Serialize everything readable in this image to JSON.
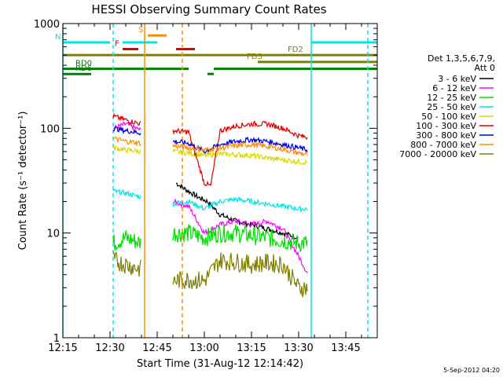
{
  "chart_data": {
    "type": "line",
    "title": "HESSI Observing Summary Count Rates",
    "xlabel": "Start Time (31-Aug-12 12:14:42)",
    "ylabel": "Count Rate (s⁻¹ detector⁻¹)",
    "y_scale": "log",
    "ylim": [
      1,
      1000
    ],
    "xlim": [
      "12:15",
      "13:55"
    ],
    "x_ticks": [
      "12:15",
      "12:30",
      "12:45",
      "13:00",
      "13:15",
      "13:30",
      "13:45"
    ],
    "y_ticks": [
      "1",
      "10",
      "100",
      "1000"
    ],
    "legend": {
      "placement": "right",
      "header": [
        "Det 1,3,5,6,7,9,",
        "Att 0"
      ],
      "entries": [
        {
          "label": "3 - 6 keV",
          "color": "#000000"
        },
        {
          "label": "6 - 12 keV",
          "color": "#ff00ff"
        },
        {
          "label": "12 - 25 keV",
          "color": "#00e000"
        },
        {
          "label": "25 - 50 keV",
          "color": "#00e5e5"
        },
        {
          "label": "50 - 100 keV",
          "color": "#d8d800"
        },
        {
          "label": "100 - 300 keV",
          "color": "#e00000"
        },
        {
          "label": "300 - 800 keV",
          "color": "#0000e0"
        },
        {
          "label": "800 - 7000 keV",
          "color": "#ff8c00"
        },
        {
          "label": "7000 - 20000 keV",
          "color": "#808000"
        }
      ]
    },
    "segments": [
      {
        "start": "12:28",
        "end": "12:41"
      },
      {
        "start": "12:50",
        "end": "13:34"
      }
    ],
    "series": [
      {
        "name": "3 - 6 keV",
        "color": "#000000",
        "points": [
          [
            "12:51",
            30
          ],
          [
            "12:55",
            25
          ],
          [
            "12:58",
            22
          ],
          [
            "13:01",
            20
          ],
          [
            "13:05",
            15
          ],
          [
            "13:10",
            13
          ],
          [
            "13:15",
            12
          ],
          [
            "13:20",
            11
          ],
          [
            "13:25",
            10
          ],
          [
            "13:30",
            9
          ]
        ]
      },
      {
        "name": "6 - 12 keV",
        "color": "#ff00ff",
        "points": [
          [
            "12:31",
            100
          ],
          [
            "12:35",
            110
          ],
          [
            "12:40",
            95
          ],
          [
            "12:50",
            20
          ],
          [
            "12:55",
            18
          ],
          [
            "13:00",
            10
          ],
          [
            "13:05",
            12
          ],
          [
            "13:10",
            13
          ],
          [
            "13:15",
            12
          ],
          [
            "13:20",
            13
          ],
          [
            "13:25",
            11
          ],
          [
            "13:30",
            6
          ],
          [
            "13:33",
            4
          ]
        ]
      },
      {
        "name": "12 - 25 keV",
        "color": "#00e000",
        "points": [
          [
            "12:31",
            8
          ],
          [
            "12:35",
            9
          ],
          [
            "12:40",
            8
          ],
          [
            "12:50",
            10
          ],
          [
            "12:55",
            10
          ],
          [
            "13:00",
            9
          ],
          [
            "13:05",
            10
          ],
          [
            "13:10",
            10
          ],
          [
            "13:15",
            9.5
          ],
          [
            "13:20",
            9
          ],
          [
            "13:25",
            8.5
          ],
          [
            "13:30",
            8
          ],
          [
            "13:33",
            8
          ]
        ]
      },
      {
        "name": "25 - 50 keV",
        "color": "#00e5e5",
        "points": [
          [
            "12:31",
            25
          ],
          [
            "12:35",
            24
          ],
          [
            "12:40",
            22
          ],
          [
            "12:50",
            19
          ],
          [
            "12:55",
            20
          ],
          [
            "13:00",
            17
          ],
          [
            "13:05",
            20
          ],
          [
            "13:10",
            21
          ],
          [
            "13:15",
            20
          ],
          [
            "13:20",
            19
          ],
          [
            "13:25",
            18
          ],
          [
            "13:30",
            17
          ],
          [
            "13:33",
            17
          ]
        ]
      },
      {
        "name": "50 - 100 keV",
        "color": "#d8d800",
        "points": [
          [
            "12:31",
            65
          ],
          [
            "12:35",
            62
          ],
          [
            "12:40",
            60
          ],
          [
            "12:50",
            60
          ],
          [
            "12:55",
            58
          ],
          [
            "13:00",
            55
          ],
          [
            "13:05",
            57
          ],
          [
            "13:10",
            56
          ],
          [
            "13:15",
            55
          ],
          [
            "13:20",
            52
          ],
          [
            "13:25",
            50
          ],
          [
            "13:30",
            48
          ],
          [
            "13:33",
            47
          ]
        ]
      },
      {
        "name": "100 - 300 keV",
        "color": "#e00000",
        "points": [
          [
            "12:31",
            130
          ],
          [
            "12:35",
            120
          ],
          [
            "12:40",
            110
          ],
          [
            "12:50",
            95
          ],
          [
            "12:55",
            92
          ],
          [
            "13:00",
            30
          ],
          [
            "13:02",
            28
          ],
          [
            "13:05",
            95
          ],
          [
            "13:10",
            105
          ],
          [
            "13:15",
            110
          ],
          [
            "13:20",
            110
          ],
          [
            "13:25",
            100
          ],
          [
            "13:30",
            85
          ],
          [
            "13:33",
            82
          ]
        ]
      },
      {
        "name": "300 - 800 keV",
        "color": "#0000e0",
        "points": [
          [
            "12:31",
            100
          ],
          [
            "12:35",
            95
          ],
          [
            "12:40",
            90
          ],
          [
            "12:50",
            75
          ],
          [
            "12:55",
            72
          ],
          [
            "13:00",
            60
          ],
          [
            "13:05",
            70
          ],
          [
            "13:10",
            75
          ],
          [
            "13:15",
            78
          ],
          [
            "13:20",
            75
          ],
          [
            "13:25",
            70
          ],
          [
            "13:30",
            65
          ],
          [
            "13:33",
            62
          ]
        ]
      },
      {
        "name": "800 - 7000 keV",
        "color": "#ff8c00",
        "points": [
          [
            "12:31",
            80
          ],
          [
            "12:35",
            75
          ],
          [
            "12:40",
            72
          ],
          [
            "12:50",
            68
          ],
          [
            "12:55",
            65
          ],
          [
            "13:00",
            62
          ],
          [
            "13:05",
            65
          ],
          [
            "13:10",
            68
          ],
          [
            "13:15",
            70
          ],
          [
            "13:20",
            67
          ],
          [
            "13:25",
            63
          ],
          [
            "13:30",
            58
          ],
          [
            "13:33",
            56
          ]
        ]
      },
      {
        "name": "7000 - 20000 keV",
        "color": "#808000",
        "points": [
          [
            "12:31",
            5.5
          ],
          [
            "12:35",
            5
          ],
          [
            "12:40",
            4.5
          ],
          [
            "12:50",
            3.5
          ],
          [
            "12:55",
            3.6
          ],
          [
            "13:00",
            3.5
          ],
          [
            "13:05",
            5.5
          ],
          [
            "13:10",
            5.3
          ],
          [
            "13:15",
            5
          ],
          [
            "13:20",
            5.2
          ],
          [
            "13:25",
            5
          ],
          [
            "13:30",
            3
          ],
          [
            "13:33",
            3
          ]
        ]
      }
    ],
    "vertical_markers": [
      {
        "time": "12:15",
        "color": "#00e5e5",
        "style": "solid"
      },
      {
        "time": "12:31",
        "color": "#00e5e5",
        "style": "dashed"
      },
      {
        "time": "12:41",
        "color": "#ff8c00",
        "style": "solid"
      },
      {
        "time": "12:53",
        "color": "#ff8c00",
        "style": "dashed"
      },
      {
        "time": "13:34",
        "color": "#00e5e5",
        "style": "solid"
      },
      {
        "time": "13:52",
        "color": "#00e5e5",
        "style": "dashed"
      }
    ],
    "flag_bars": [
      {
        "label": "N",
        "color": "#00e5e5",
        "y": 660,
        "segments": [
          [
            "12:15",
            "12:30"
          ],
          [
            "12:34",
            "12:45"
          ],
          [
            "13:34",
            "13:55"
          ]
        ]
      },
      {
        "label": "S",
        "color": "#ff8c00",
        "y": 770,
        "segments": [
          [
            "12:42",
            "12:48"
          ]
        ]
      },
      {
        "label": "F",
        "color": "#e00000",
        "y": 570,
        "segments": [
          [
            "12:34",
            "12:39"
          ],
          [
            "12:51",
            "12:57"
          ]
        ]
      },
      {
        "label": "FD2",
        "color": "#808000",
        "y": 500,
        "segments": [
          [
            "12:15",
            "13:55"
          ]
        ]
      },
      {
        "label": "FD3",
        "color": "#808000",
        "y": 430,
        "segments": [
          [
            "13:17",
            "13:55"
          ]
        ]
      },
      {
        "label": "RD0",
        "color": "#008000",
        "y": 370,
        "segments": [
          [
            "12:15",
            "12:55"
          ],
          [
            "13:03",
            "13:55"
          ]
        ]
      },
      {
        "label": "RD6",
        "color": "#008000",
        "y": 330,
        "segments": [
          [
            "12:15",
            "12:24"
          ],
          [
            "13:01",
            "13:03"
          ]
        ]
      }
    ]
  },
  "footer_timestamp": "5-Sep-2012 04:20"
}
